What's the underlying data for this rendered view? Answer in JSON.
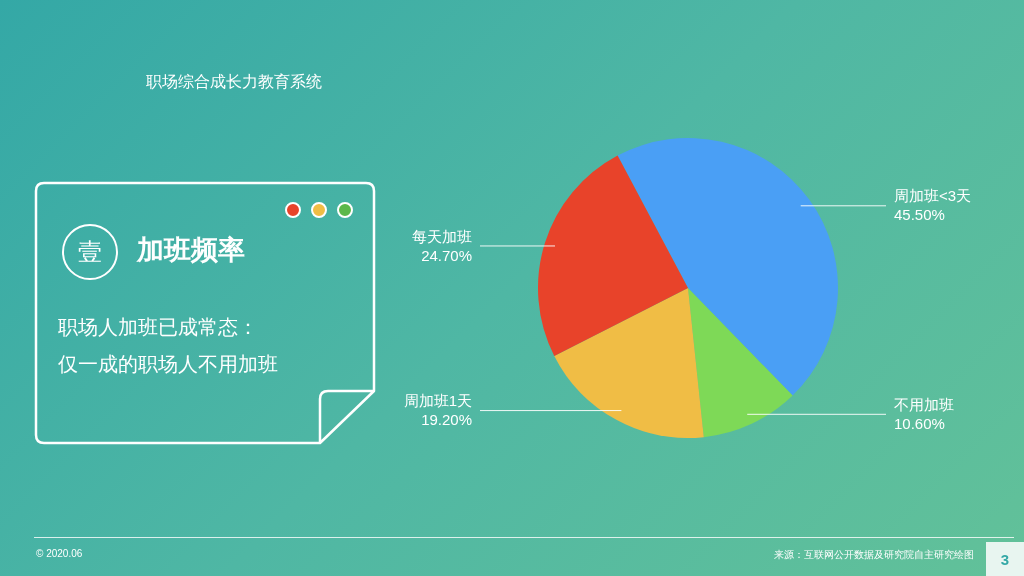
{
  "chart_data": {
    "type": "pie",
    "title": "加班频率",
    "categories": [
      "周加班<3天",
      "不用加班",
      "周加班1天",
      "每天加班"
    ],
    "values": [
      45.5,
      10.6,
      19.2,
      24.7
    ],
    "colors": [
      "#4a9ff5",
      "#7ed957",
      "#f0bd45",
      "#e8432a"
    ],
    "value_labels": [
      "45.50%",
      "10.60%",
      "19.20%",
      "24.70%"
    ],
    "legend": false,
    "annotations": [
      "职场综合成长力教育系统",
      "壹",
      "职场人加班已成常态：",
      "仅一成的职场人不用加班",
      "© 2020.06",
      "来源：互联网公开数据及研究院自主研究绘图",
      "3"
    ]
  }
}
